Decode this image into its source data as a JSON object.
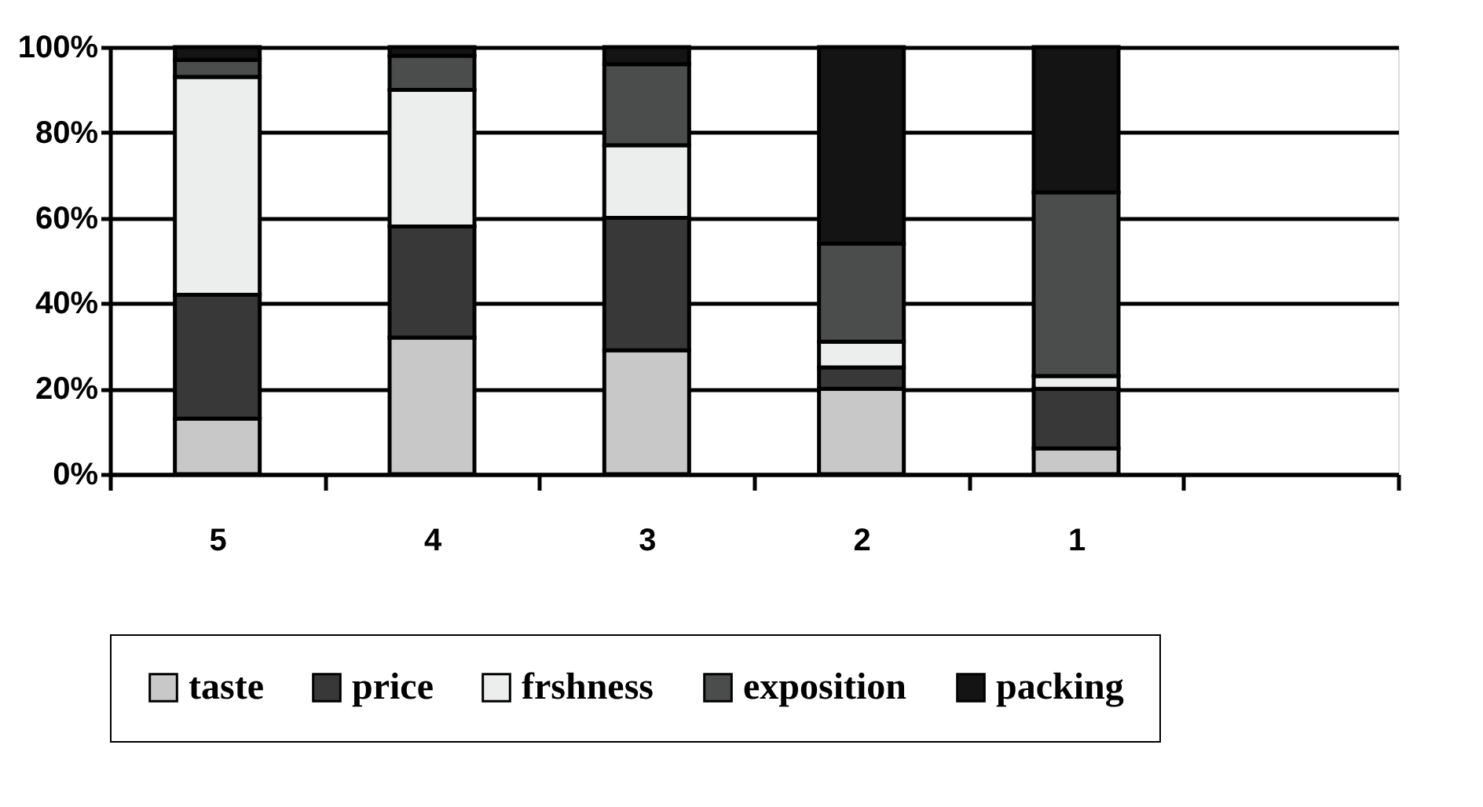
{
  "chart_data": {
    "type": "bar",
    "stacked": true,
    "categories": [
      "5",
      "4",
      "3",
      "2",
      "1",
      null
    ],
    "series": [
      {
        "name": "taste",
        "color": "#c8c8c8",
        "values": [
          13,
          32,
          29,
          20,
          6,
          null
        ]
      },
      {
        "name": "price",
        "color": "#383838",
        "values": [
          29,
          26,
          31,
          5,
          14,
          null
        ]
      },
      {
        "name": "frshness",
        "color": "#eceeed",
        "values": [
          51,
          32,
          17,
          6,
          3,
          null
        ]
      },
      {
        "name": "exposition",
        "color": "#4b4d4c",
        "values": [
          4,
          8,
          19,
          23,
          43,
          null
        ]
      },
      {
        "name": "packing",
        "color": "#141414",
        "values": [
          3,
          2,
          4,
          46,
          34,
          null
        ]
      }
    ],
    "ylim": [
      0,
      100
    ],
    "yticks": [
      {
        "value": 0,
        "label": "0%"
      },
      {
        "value": 20,
        "label": "20%"
      },
      {
        "value": 40,
        "label": "40%"
      },
      {
        "value": 60,
        "label": "60%"
      },
      {
        "value": 80,
        "label": "80%"
      },
      {
        "value": 100,
        "label": "100%"
      }
    ],
    "grid": "y",
    "legend": "bottom"
  }
}
